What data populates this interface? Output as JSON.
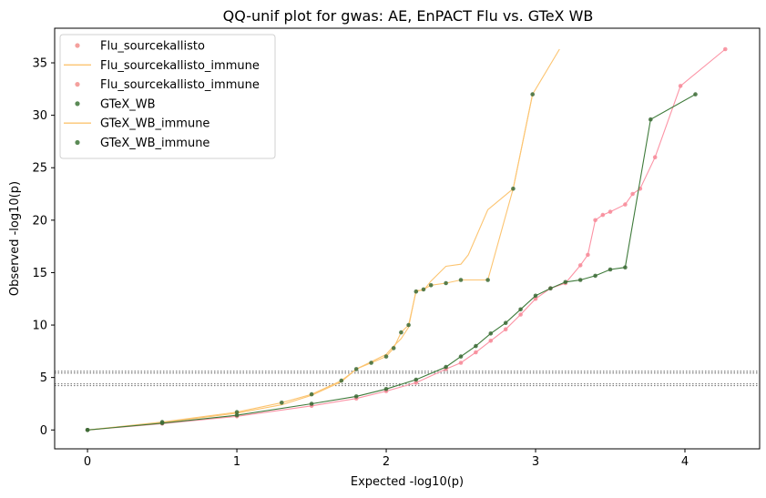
{
  "chart_data": {
    "type": "scatter",
    "title": "QQ-unif plot for gwas: AE, EnPACT Flu vs. GTeX WB",
    "xlabel": "Expected -log10(p)",
    "ylabel": "Observed -log10(p)",
    "xlim": [
      -0.22,
      4.5
    ],
    "ylim": [
      -1.8,
      38.3
    ],
    "xticks": [
      0,
      1,
      2,
      3,
      4
    ],
    "yticks": [
      0,
      5,
      10,
      15,
      20,
      25,
      30,
      35
    ],
    "xtick_labels": [
      "0",
      "1",
      "2",
      "3",
      "4"
    ],
    "ytick_labels": [
      "0",
      "5",
      "10",
      "15",
      "20",
      "25",
      "30",
      "35"
    ],
    "grid": false,
    "legend_position": "top-left",
    "thresholds": [
      4.4,
      5.6
    ],
    "legend": [
      {
        "label": "Flu_sourcekallisto",
        "kind": "marker",
        "color": "#f4a09d"
      },
      {
        "label": "Flu_sourcekallisto_immune",
        "kind": "line",
        "color": "#fcc470"
      },
      {
        "label": "Flu_sourcekallisto_immune",
        "kind": "marker",
        "color": "#f4a09d"
      },
      {
        "label": "GTeX_WB",
        "kind": "marker",
        "color": "#5b8a56"
      },
      {
        "label": "GTeX_WB_immune",
        "kind": "line",
        "color": "#fcc470"
      },
      {
        "label": "GTeX_WB_immune",
        "kind": "marker",
        "color": "#5b8a56"
      }
    ],
    "series": [
      {
        "label": "Flu_sourcekallisto_immune",
        "kind": "line",
        "color": "#fc93a5",
        "x": [
          0,
          0.5,
          1.0,
          1.5,
          1.8,
          2.0,
          2.2,
          2.4,
          2.5,
          2.6,
          2.7,
          2.8,
          2.9,
          3.0,
          3.1,
          3.2,
          3.3,
          3.35,
          3.4,
          3.45,
          3.5,
          3.6,
          3.65,
          3.7,
          3.8,
          3.97,
          4.27
        ],
        "y": [
          0,
          0.6,
          1.3,
          2.3,
          3.0,
          3.7,
          4.5,
          5.8,
          6.4,
          7.4,
          8.5,
          9.6,
          11.0,
          12.5,
          13.5,
          14.0,
          15.7,
          16.7,
          20.0,
          20.5,
          20.8,
          21.5,
          22.5,
          23.0,
          26.0,
          32.8,
          36.3
        ]
      },
      {
        "label": "Flu_sourcekallisto",
        "kind": "line",
        "color": "#fcc470",
        "x": [
          0,
          0.5,
          1.0,
          1.3,
          1.5,
          1.7,
          1.8,
          1.9,
          2.0,
          2.05,
          2.1,
          2.15,
          2.2,
          2.25,
          2.3,
          2.4,
          2.5,
          2.55,
          2.68,
          2.85,
          2.98,
          3.16
        ],
        "y": [
          0,
          0.7,
          1.6,
          2.4,
          3.3,
          4.6,
          5.8,
          6.5,
          7.2,
          8.0,
          8.7,
          9.8,
          13.3,
          13.3,
          14.2,
          15.6,
          15.8,
          16.7,
          21.0,
          23.0,
          32.0,
          36.3
        ]
      },
      {
        "label": "GTeX_WB_immune",
        "kind": "line",
        "color": "#fcc470",
        "x": [
          0,
          0.5,
          1.0,
          1.3,
          1.5,
          1.7,
          1.8,
          1.9,
          2.0,
          2.05,
          2.1,
          2.15,
          2.2,
          2.25,
          2.3,
          2.4,
          2.5,
          2.68,
          2.85,
          2.98
        ],
        "y": [
          0,
          0.75,
          1.7,
          2.6,
          3.4,
          4.7,
          5.8,
          6.4,
          7.0,
          7.8,
          9.3,
          10.0,
          13.2,
          13.4,
          13.8,
          14.0,
          14.3,
          14.3,
          23.0,
          32.0
        ]
      },
      {
        "label": "GTeX_WB",
        "kind": "line",
        "color": "#3e7a3a",
        "x": [
          0,
          0.5,
          1.0,
          1.5,
          1.8,
          2.0,
          2.2,
          2.4,
          2.5,
          2.6,
          2.7,
          2.8,
          2.9,
          3.0,
          3.1,
          3.2,
          3.3,
          3.4,
          3.5,
          3.6,
          3.77,
          4.07
        ],
        "y": [
          0,
          0.65,
          1.4,
          2.5,
          3.2,
          3.9,
          4.8,
          6.0,
          7.0,
          8.0,
          9.2,
          10.2,
          11.5,
          12.8,
          13.5,
          14.1,
          14.3,
          14.7,
          15.3,
          15.5,
          29.6,
          32.0
        ]
      }
    ]
  }
}
